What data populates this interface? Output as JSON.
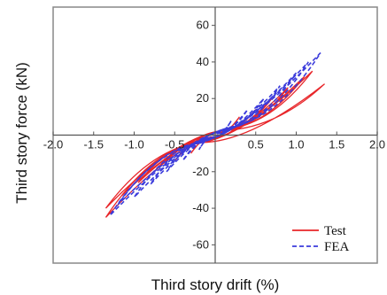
{
  "chart_data": {
    "type": "line",
    "xlabel": "Third story drift (%)",
    "ylabel": "Third story force (kN)",
    "xlim": [
      -2.0,
      2.0
    ],
    "ylim": [
      -70,
      70
    ],
    "x_ticks": [
      -2.0,
      -1.5,
      -1.0,
      -0.5,
      0.0,
      0.5,
      1.0,
      1.5,
      2.0
    ],
    "x_tick_labels": [
      "-2.0",
      "-1.5",
      "-1.0",
      "-0.5",
      "",
      "0.5",
      "1.0",
      "1.5",
      "2.0"
    ],
    "y_ticks": [
      -60,
      -40,
      -20,
      20,
      40,
      60
    ],
    "y_tick_labels": [
      "-60",
      "-40",
      "-20",
      "20",
      "40",
      "60"
    ],
    "legend": {
      "position": "bottom-right"
    },
    "series": [
      {
        "name": "Test",
        "color": "#e8262a",
        "style": "solid",
        "loops": [
          {
            "amp_pos": 0.3,
            "amp_neg": 0.3,
            "fmax": 10,
            "fmin": -10,
            "width": 0.35
          },
          {
            "amp_pos": 0.5,
            "amp_neg": 0.5,
            "fmax": 14,
            "fmin": -14,
            "width": 0.45
          },
          {
            "amp_pos": 0.7,
            "amp_neg": 0.75,
            "fmax": 20,
            "fmin": -20,
            "width": 0.5
          },
          {
            "amp_pos": 0.9,
            "amp_neg": 0.95,
            "fmax": 26,
            "fmin": -26,
            "width": 0.5
          },
          {
            "amp_pos": 1.1,
            "amp_neg": 1.15,
            "fmax": 32,
            "fmin": -33,
            "width": 0.5
          },
          {
            "amp_pos": 1.2,
            "amp_neg": 1.35,
            "fmax": 35,
            "fmin": -45,
            "width": 0.5
          },
          {
            "amp_pos": 1.35,
            "amp_neg": 1.35,
            "fmax": 28,
            "fmin": -40,
            "width": 0.75
          }
        ]
      },
      {
        "name": "FEA",
        "color": "#3b3bdb",
        "style": "dashed",
        "loops": [
          {
            "amp_pos": 0.2,
            "amp_neg": 0.2,
            "fmax": 8,
            "fmin": -8,
            "width": 0.3
          },
          {
            "amp_pos": 0.4,
            "amp_neg": 0.4,
            "fmax": 14,
            "fmin": -14,
            "width": 0.35
          },
          {
            "amp_pos": 0.6,
            "amp_neg": 0.6,
            "fmax": 20,
            "fmin": -20,
            "width": 0.35
          },
          {
            "amp_pos": 0.8,
            "amp_neg": 0.8,
            "fmax": 27,
            "fmin": -27,
            "width": 0.35
          },
          {
            "amp_pos": 1.0,
            "amp_neg": 1.0,
            "fmax": 34,
            "fmin": -34,
            "width": 0.35
          },
          {
            "amp_pos": 1.15,
            "amp_neg": 1.2,
            "fmax": 40,
            "fmin": -38,
            "width": 0.35
          },
          {
            "amp_pos": 1.3,
            "amp_neg": 1.3,
            "fmax": 45,
            "fmin": -44,
            "width": 0.35
          }
        ]
      }
    ]
  }
}
